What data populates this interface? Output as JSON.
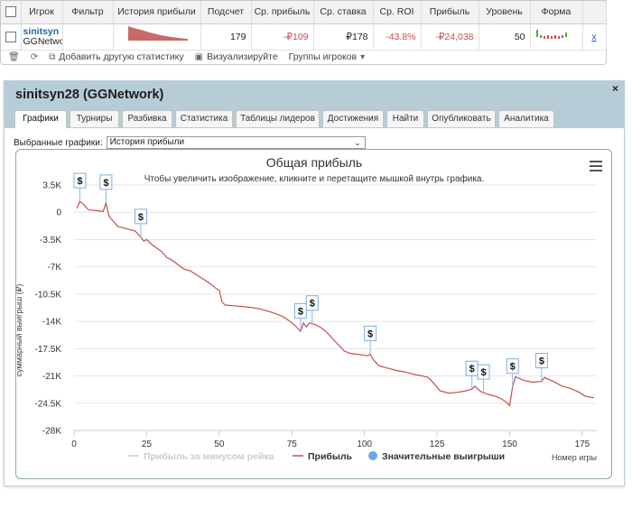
{
  "stats_table": {
    "headers": [
      "Игрок",
      "Фильтр",
      "История прибыли",
      "Подсчет",
      "Ср. прибыль",
      "Ср. ставка",
      "Ср. ROI",
      "Прибыль",
      "Уровень",
      "Форма"
    ],
    "row": {
      "player_name": "sinitsyn",
      "player_network": "GGNetwo",
      "filter": "",
      "count": "179",
      "avg_profit": "-₽109",
      "avg_stake": "₽178",
      "avg_roi": "-43.8%",
      "profit": "-₽24,038",
      "level": "50",
      "action": "x"
    }
  },
  "toolbar": {
    "add_stat_label": "Добавить другую статистику",
    "visualize_label": "Визуализируйте",
    "groups_label": "Группы игроков"
  },
  "dialog": {
    "title": "sinitsyn28 (GGNetwork)",
    "close_label": "×",
    "tabs": [
      "Графики",
      "Турниры",
      "Разбивка",
      "Статистика",
      "Таблицы лидеров",
      "Достижения",
      "Найти",
      "Опубликовать",
      "Аналитика"
    ],
    "active_tab": 0,
    "selected_charts_label": "Выбранные графики:",
    "selected_chart_value": "История прибыли"
  },
  "colors": {
    "profit_line": "#c0504d",
    "big_win_marker": "#6aa9e6",
    "rake_line": "#cccccc",
    "dialog_header": "#b6cdd7"
  },
  "chart_data": {
    "type": "line",
    "title": "Общая прибыль",
    "subtitle": "Чтобы увеличить изображение, кликните и перетащите мышкой внутрь графика.",
    "xlabel": "Номер игры",
    "ylabel": "суммарный выигрыш (₽)",
    "xlim": [
      0,
      180
    ],
    "ylim": [
      -28000,
      3500
    ],
    "xticks": [
      0,
      25,
      50,
      75,
      100,
      125,
      150,
      175
    ],
    "yticks": [
      3500,
      0,
      -3500,
      -7000,
      -10500,
      -14000,
      -17500,
      -21000,
      -24500,
      -28000
    ],
    "ytick_labels": [
      "3.5K",
      "0",
      "-3.5K",
      "-7K",
      "-10.5K",
      "-14K",
      "-17.5K",
      "-21K",
      "-24.5K",
      "-28K"
    ],
    "grid": true,
    "legend_position": "bottom",
    "legend": [
      "Прибыль за минусом рейка",
      "Прибыль",
      "Значительные выигрыши"
    ],
    "series": [
      {
        "name": "Прибыль",
        "points": [
          [
            1,
            500
          ],
          [
            2,
            1400
          ],
          [
            3,
            1100
          ],
          [
            5,
            300
          ],
          [
            8,
            200
          ],
          [
            10,
            100
          ],
          [
            11,
            1200
          ],
          [
            12,
            -500
          ],
          [
            15,
            -1800
          ],
          [
            18,
            -2100
          ],
          [
            21,
            -2400
          ],
          [
            23,
            -3200
          ],
          [
            24,
            -3700
          ],
          [
            25,
            -3500
          ],
          [
            27,
            -4200
          ],
          [
            30,
            -5000
          ],
          [
            32,
            -5800
          ],
          [
            34,
            -6200
          ],
          [
            36,
            -6800
          ],
          [
            38,
            -7300
          ],
          [
            40,
            -7500
          ],
          [
            42,
            -8000
          ],
          [
            45,
            -8700
          ],
          [
            47,
            -9200
          ],
          [
            49,
            -9800
          ],
          [
            50,
            -10000
          ],
          [
            51,
            -11500
          ],
          [
            52,
            -11900
          ],
          [
            55,
            -12000
          ],
          [
            58,
            -12100
          ],
          [
            61,
            -12200
          ],
          [
            64,
            -12400
          ],
          [
            67,
            -12700
          ],
          [
            70,
            -13100
          ],
          [
            72,
            -13400
          ],
          [
            74,
            -13900
          ],
          [
            76,
            -14500
          ],
          [
            77,
            -14900
          ],
          [
            78,
            -15300
          ],
          [
            79,
            -14200
          ],
          [
            80,
            -14700
          ],
          [
            81,
            -14200
          ],
          [
            83,
            -14400
          ],
          [
            85,
            -14800
          ],
          [
            87,
            -15400
          ],
          [
            89,
            -16200
          ],
          [
            91,
            -17000
          ],
          [
            93,
            -17800
          ],
          [
            95,
            -18100
          ],
          [
            97,
            -18200
          ],
          [
            99,
            -18300
          ],
          [
            101,
            -18400
          ],
          [
            102,
            -18200
          ],
          [
            103,
            -18900
          ],
          [
            105,
            -19700
          ],
          [
            108,
            -20000
          ],
          [
            111,
            -20300
          ],
          [
            114,
            -20500
          ],
          [
            117,
            -20800
          ],
          [
            120,
            -21000
          ],
          [
            122,
            -21200
          ],
          [
            124,
            -22000
          ],
          [
            126,
            -22900
          ],
          [
            129,
            -23200
          ],
          [
            132,
            -23100
          ],
          [
            135,
            -22900
          ],
          [
            137,
            -22700
          ],
          [
            138,
            -22300
          ],
          [
            140,
            -23000
          ],
          [
            142,
            -23300
          ],
          [
            145,
            -23600
          ],
          [
            147,
            -23900
          ],
          [
            149,
            -24400
          ],
          [
            150,
            -24800
          ],
          [
            151,
            -22400
          ],
          [
            152,
            -21100
          ],
          [
            155,
            -21600
          ],
          [
            158,
            -21800
          ],
          [
            161,
            -21700
          ],
          [
            162,
            -21200
          ],
          [
            165,
            -21700
          ],
          [
            168,
            -22300
          ],
          [
            171,
            -22600
          ],
          [
            174,
            -23100
          ],
          [
            176,
            -23600
          ],
          [
            179,
            -23800
          ]
        ]
      }
    ],
    "big_wins_x": [
      2,
      11,
      23,
      78,
      82,
      102,
      137,
      141,
      151,
      161
    ]
  }
}
